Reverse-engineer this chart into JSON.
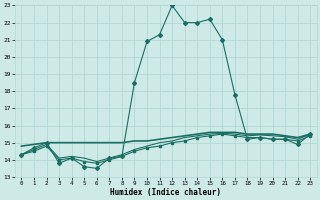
{
  "xlabel": "Humidex (Indice chaleur)",
  "bg_color": "#ceeae7",
  "grid_color": "#b2d8d4",
  "line_color": "#1a6e64",
  "xlim": [
    -0.5,
    23.5
  ],
  "ylim": [
    13,
    23
  ],
  "xticks": [
    0,
    1,
    2,
    3,
    4,
    5,
    6,
    7,
    8,
    9,
    10,
    11,
    12,
    13,
    14,
    15,
    16,
    17,
    18,
    19,
    20,
    21,
    22,
    23
  ],
  "yticks": [
    13,
    14,
    15,
    16,
    17,
    18,
    19,
    20,
    21,
    22,
    23
  ],
  "series1_x": [
    0,
    1,
    2,
    3,
    4,
    5,
    6,
    7,
    8,
    9,
    10,
    11,
    12,
    13,
    14,
    15,
    16,
    17,
    18,
    19,
    20,
    21,
    22,
    23
  ],
  "series1_y": [
    14.3,
    14.7,
    15.0,
    13.8,
    14.1,
    13.6,
    13.5,
    14.1,
    14.2,
    18.5,
    20.9,
    21.3,
    23.0,
    22.0,
    22.0,
    22.2,
    21.0,
    17.8,
    15.2,
    15.3,
    15.2,
    15.2,
    14.9,
    15.5
  ],
  "series2_x": [
    0,
    1,
    2,
    3,
    4,
    5,
    6,
    7,
    8,
    9,
    10,
    11,
    12,
    13,
    14,
    15,
    16,
    17,
    18,
    19,
    20,
    21,
    22,
    23
  ],
  "series2_y": [
    14.8,
    14.9,
    15.0,
    15.0,
    15.0,
    15.0,
    15.0,
    15.0,
    15.0,
    15.1,
    15.1,
    15.2,
    15.3,
    15.4,
    15.5,
    15.6,
    15.6,
    15.6,
    15.5,
    15.5,
    15.5,
    15.4,
    15.3,
    15.5
  ],
  "series3_x": [
    0,
    1,
    2,
    3,
    4,
    5,
    6,
    7,
    8,
    9,
    10,
    11,
    12,
    13,
    14,
    15,
    16,
    17,
    18,
    19,
    20,
    21,
    22,
    23
  ],
  "series3_y": [
    14.3,
    14.5,
    14.8,
    14.0,
    14.1,
    13.9,
    13.8,
    14.0,
    14.2,
    14.5,
    14.7,
    14.8,
    15.0,
    15.1,
    15.3,
    15.4,
    15.5,
    15.4,
    15.3,
    15.3,
    15.2,
    15.2,
    15.1,
    15.4
  ],
  "series4_x": [
    0,
    1,
    2,
    3,
    4,
    5,
    6,
    7,
    8,
    9,
    10,
    11,
    12,
    13,
    14,
    15,
    16,
    17,
    18,
    19,
    20,
    21,
    22,
    23
  ],
  "series4_y": [
    14.3,
    14.6,
    14.9,
    14.1,
    14.2,
    14.1,
    13.9,
    14.1,
    14.3,
    14.6,
    14.8,
    15.0,
    15.1,
    15.3,
    15.4,
    15.5,
    15.55,
    15.5,
    15.4,
    15.45,
    15.4,
    15.35,
    15.2,
    15.5
  ]
}
